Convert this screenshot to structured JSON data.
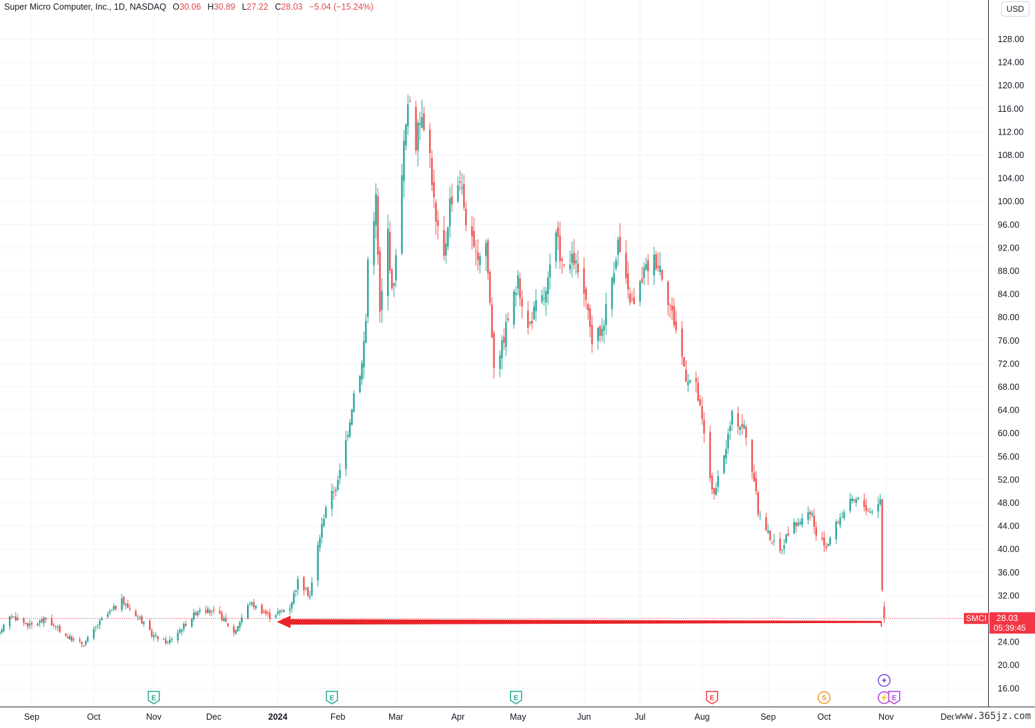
{
  "header": {
    "instrument": "Super Micro Computer, Inc., 1D, NASDAQ",
    "open_label": "O",
    "open": "30.06",
    "high_label": "H",
    "high": "30.89",
    "low_label": "L",
    "low": "27.22",
    "close_label": "C",
    "close": "28.03",
    "change": "−5.04 (−15.24%)"
  },
  "currency_button": "USD",
  "price_badge": {
    "symbol": "SMCI",
    "price": "28.03",
    "countdown": "05:39:45"
  },
  "watermark": "www.365jz.com",
  "colors": {
    "up": "#26a69a",
    "down": "#ef5350",
    "arrow": "#e8252a",
    "badge": "#f23645"
  },
  "chart_data": {
    "type": "candlestick",
    "title": "Super Micro Computer, Inc., 1D, NASDAQ",
    "ylim": [
      13,
      132
    ],
    "y_ticks": [
      16,
      20,
      24,
      28,
      32,
      36,
      40,
      44,
      48,
      52,
      56,
      60,
      64,
      68,
      72,
      76,
      80,
      84,
      88,
      92,
      96,
      100,
      104,
      108,
      112,
      116,
      120,
      124,
      128
    ],
    "y_tick_labels": [
      "16.00",
      "20.00",
      "24.00",
      "28.00",
      "32.00",
      "36.00",
      "40.00",
      "44.00",
      "48.00",
      "52.00",
      "56.00",
      "60.00",
      "64.00",
      "68.00",
      "72.00",
      "76.00",
      "80.00",
      "84.00",
      "88.00",
      "92.00",
      "96.00",
      "100.00",
      "104.00",
      "108.00",
      "112.00",
      "116.00",
      "120.00",
      "124.00",
      "128.00"
    ],
    "x_labels": [
      {
        "date": "2023-09-01",
        "label": "Sep",
        "bold": false
      },
      {
        "date": "2023-10-02",
        "label": "Oct",
        "bold": false
      },
      {
        "date": "2023-11-01",
        "label": "Nov",
        "bold": false
      },
      {
        "date": "2023-12-01",
        "label": "Dec",
        "bold": false
      },
      {
        "date": "2024-01-02",
        "label": "2024",
        "bold": true
      },
      {
        "date": "2024-02-01",
        "label": "Feb",
        "bold": false
      },
      {
        "date": "2024-03-01",
        "label": "Mar",
        "bold": false
      },
      {
        "date": "2024-04-01",
        "label": "Apr",
        "bold": false
      },
      {
        "date": "2024-05-01",
        "label": "May",
        "bold": false
      },
      {
        "date": "2024-06-03",
        "label": "Jun",
        "bold": false
      },
      {
        "date": "2024-07-01",
        "label": "Jul",
        "bold": false
      },
      {
        "date": "2024-08-01",
        "label": "Aug",
        "bold": false
      },
      {
        "date": "2024-09-03",
        "label": "Sep",
        "bold": false
      },
      {
        "date": "2024-10-01",
        "label": "Oct",
        "bold": false
      },
      {
        "date": "2024-11-01",
        "label": "Nov",
        "bold": false
      },
      {
        "date": "2024-12-02",
        "label": "Dec",
        "bold": false
      }
    ],
    "events": [
      {
        "date": "2023-11-01",
        "kind": "earnings",
        "text": "E",
        "color": "#22ab94"
      },
      {
        "date": "2024-01-29",
        "kind": "earnings",
        "text": "E",
        "color": "#22ab94"
      },
      {
        "date": "2024-04-30",
        "kind": "earnings",
        "text": "E",
        "color": "#22ab94"
      },
      {
        "date": "2024-08-06",
        "kind": "earnings",
        "text": "E",
        "color": "#f23645"
      },
      {
        "date": "2024-10-01",
        "kind": "split",
        "text": "S",
        "color": "#f7931a"
      },
      {
        "date": "2024-10-31",
        "kind": "news",
        "text": "✦",
        "color": "#7b49d9"
      },
      {
        "date": "2024-10-31",
        "kind": "dividend",
        "text": "⚡",
        "color": "#b33cd9"
      },
      {
        "date": "2024-11-05",
        "kind": "earnings",
        "text": "E",
        "color": "#b33cd9"
      }
    ],
    "last_price": 28.03,
    "annotation_arrow": {
      "from_date": "2024-10-31",
      "to_date": "2023-12-29",
      "price": 28.03
    },
    "monthly_path": [
      {
        "date": "2023-08-14",
        "close": 25.0
      },
      {
        "date": "2023-08-22",
        "close": 28.5
      },
      {
        "date": "2023-08-31",
        "close": 26.8
      },
      {
        "date": "2023-09-08",
        "close": 27.9
      },
      {
        "date": "2023-09-19",
        "close": 24.8
      },
      {
        "date": "2023-09-27",
        "close": 23.6
      },
      {
        "date": "2023-10-06",
        "close": 27.8
      },
      {
        "date": "2023-10-16",
        "close": 31.0
      },
      {
        "date": "2023-10-24",
        "close": 28.5
      },
      {
        "date": "2023-10-31",
        "close": 25.2
      },
      {
        "date": "2023-11-08",
        "close": 23.9
      },
      {
        "date": "2023-11-16",
        "close": 26.8
      },
      {
        "date": "2023-11-24",
        "close": 29.8
      },
      {
        "date": "2023-12-04",
        "close": 28.6
      },
      {
        "date": "2023-12-11",
        "close": 25.6
      },
      {
        "date": "2023-12-19",
        "close": 30.8
      },
      {
        "date": "2023-12-29",
        "close": 28.4
      },
      {
        "date": "2024-01-08",
        "close": 30.0
      },
      {
        "date": "2024-01-12",
        "close": 34.5
      },
      {
        "date": "2024-01-18",
        "close": 32.0
      },
      {
        "date": "2024-01-22",
        "close": 40.5
      },
      {
        "date": "2024-01-26",
        "close": 47.5
      },
      {
        "date": "2024-02-01",
        "close": 51.5
      },
      {
        "date": "2024-02-06",
        "close": 60.5
      },
      {
        "date": "2024-02-09",
        "close": 67.0
      },
      {
        "date": "2024-02-13",
        "close": 72.0
      },
      {
        "date": "2024-02-15",
        "close": 79.5
      },
      {
        "date": "2024-02-16",
        "close": 90.0
      },
      {
        "date": "2024-02-20",
        "close": 100.5
      },
      {
        "date": "2024-02-22",
        "close": 80.5
      },
      {
        "date": "2024-02-26",
        "close": 95.0
      },
      {
        "date": "2024-02-28",
        "close": 84.0
      },
      {
        "date": "2024-03-01",
        "close": 90.0
      },
      {
        "date": "2024-03-04",
        "close": 106.0
      },
      {
        "date": "2024-03-06",
        "close": 113.0
      },
      {
        "date": "2024-03-08",
        "close": 118.0
      },
      {
        "date": "2024-03-11",
        "close": 110.0
      },
      {
        "date": "2024-03-14",
        "close": 116.0
      },
      {
        "date": "2024-03-18",
        "close": 108.0
      },
      {
        "date": "2024-03-21",
        "close": 96.0
      },
      {
        "date": "2024-03-25",
        "close": 90.0
      },
      {
        "date": "2024-03-28",
        "close": 100.0
      },
      {
        "date": "2024-04-02",
        "close": 104.0
      },
      {
        "date": "2024-04-05",
        "close": 97.0
      },
      {
        "date": "2024-04-10",
        "close": 90.0
      },
      {
        "date": "2024-04-15",
        "close": 93.0
      },
      {
        "date": "2024-04-19",
        "close": 72.0
      },
      {
        "date": "2024-04-23",
        "close": 75.0
      },
      {
        "date": "2024-04-26",
        "close": 80.0
      },
      {
        "date": "2024-05-01",
        "close": 86.0
      },
      {
        "date": "2024-05-06",
        "close": 78.0
      },
      {
        "date": "2024-05-10",
        "close": 82.0
      },
      {
        "date": "2024-05-15",
        "close": 84.0
      },
      {
        "date": "2024-05-20",
        "close": 94.0
      },
      {
        "date": "2024-05-24",
        "close": 88.0
      },
      {
        "date": "2024-05-29",
        "close": 90.0
      },
      {
        "date": "2024-06-03",
        "close": 84.0
      },
      {
        "date": "2024-06-07",
        "close": 76.0
      },
      {
        "date": "2024-06-12",
        "close": 78.0
      },
      {
        "date": "2024-06-17",
        "close": 87.0
      },
      {
        "date": "2024-06-20",
        "close": 93.0
      },
      {
        "date": "2024-06-25",
        "close": 84.0
      },
      {
        "date": "2024-06-28",
        "close": 82.0
      },
      {
        "date": "2024-07-03",
        "close": 88.0
      },
      {
        "date": "2024-07-08",
        "close": 90.0
      },
      {
        "date": "2024-07-11",
        "close": 89.0
      },
      {
        "date": "2024-07-16",
        "close": 82.0
      },
      {
        "date": "2024-07-19",
        "close": 78.0
      },
      {
        "date": "2024-07-24",
        "close": 70.0
      },
      {
        "date": "2024-07-29",
        "close": 68.0
      },
      {
        "date": "2024-08-01",
        "close": 62.0
      },
      {
        "date": "2024-08-05",
        "close": 52.5
      },
      {
        "date": "2024-08-07",
        "close": 49.0
      },
      {
        "date": "2024-08-12",
        "close": 56.0
      },
      {
        "date": "2024-08-16",
        "close": 63.0
      },
      {
        "date": "2024-08-22",
        "close": 61.0
      },
      {
        "date": "2024-08-27",
        "close": 52.0
      },
      {
        "date": "2024-08-29",
        "close": 46.5
      },
      {
        "date": "2024-09-04",
        "close": 42.0
      },
      {
        "date": "2024-09-09",
        "close": 39.5
      },
      {
        "date": "2024-09-13",
        "close": 43.0
      },
      {
        "date": "2024-09-19",
        "close": 45.0
      },
      {
        "date": "2024-09-25",
        "close": 46.0
      },
      {
        "date": "2024-09-27",
        "close": 42.0
      },
      {
        "date": "2024-10-02",
        "close": 40.5
      },
      {
        "date": "2024-10-08",
        "close": 45.0
      },
      {
        "date": "2024-10-14",
        "close": 48.0
      },
      {
        "date": "2024-10-18",
        "close": 48.5
      },
      {
        "date": "2024-10-24",
        "close": 46.5
      },
      {
        "date": "2024-10-29",
        "close": 48.5
      },
      {
        "date": "2024-10-30",
        "close": 33.0
      },
      {
        "date": "2024-10-31",
        "close": 28.03
      }
    ]
  }
}
